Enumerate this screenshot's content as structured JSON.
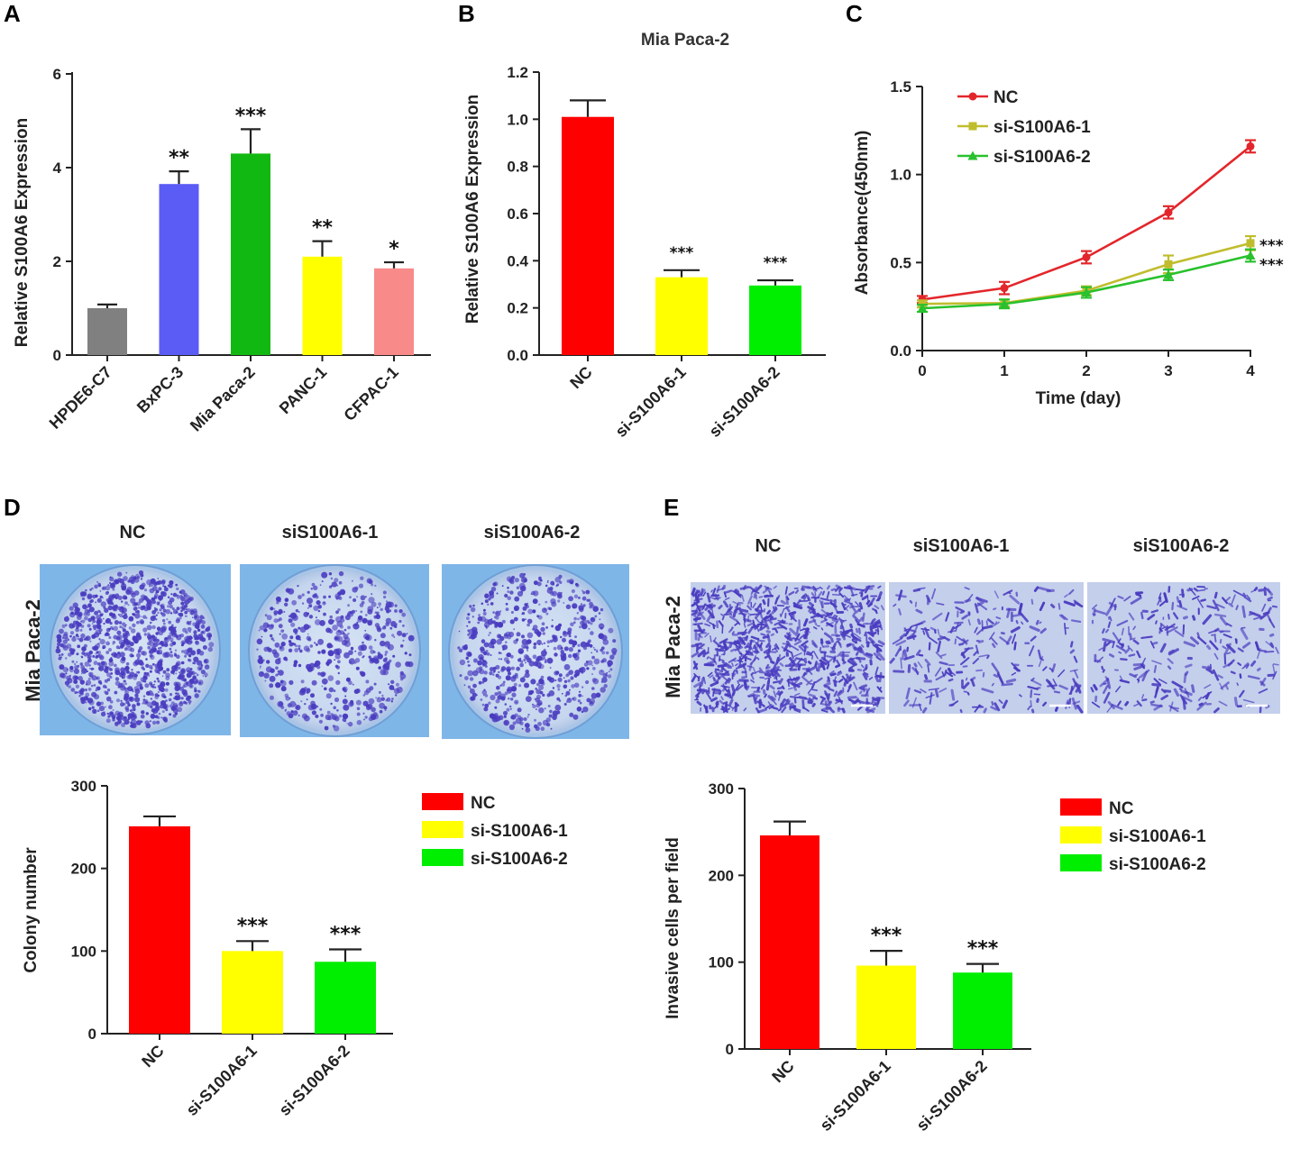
{
  "panels": {
    "A": {
      "letter": "A"
    },
    "B": {
      "letter": "B"
    },
    "C": {
      "letter": "C"
    },
    "D": {
      "letter": "D",
      "image_labels": [
        "NC",
        "siS100A6-1",
        "siS100A6-2"
      ],
      "row_label": "Mia Paca-2"
    },
    "E": {
      "letter": "E",
      "image_labels": [
        "NC",
        "siS100A6-1",
        "siS100A6-2"
      ],
      "row_label": "Mia Paca-2"
    }
  },
  "colors": {
    "grey": "#808080",
    "blue": "#5b5bf5",
    "green": "#12b812",
    "yellow": "#ffff00",
    "pink": "#f88a8a",
    "red": "#ff0000",
    "brightgreen": "#00ee00",
    "line_nc": "#e3262b",
    "line_si1": "#c0bd2d",
    "line_si2": "#29c12d",
    "stain": "#4a3cc0",
    "dish": "#7fb6e8",
    "well": "#c4cfec"
  },
  "chart_data": [
    {
      "id": "A",
      "type": "bar",
      "title": "",
      "ylabel": "Relative S100A6  Expression",
      "xlabel": "",
      "ylim": [
        0,
        6
      ],
      "yticks": [
        "0",
        "2",
        "4",
        "6"
      ],
      "categories": [
        "HPDE6-C7",
        "BxPC-3",
        "Mia Paca-2",
        "PANC-1",
        "CFPAC-1"
      ],
      "values": [
        1.0,
        3.65,
        4.3,
        2.1,
        1.85
      ],
      "errors": [
        0.08,
        0.27,
        0.52,
        0.33,
        0.13
      ],
      "significance": [
        "",
        "**",
        "***",
        "**",
        "*"
      ]
    },
    {
      "id": "B",
      "type": "bar",
      "title": "Mia Paca-2",
      "ylabel": "Relative S100A6  Expression",
      "xlabel": "",
      "ylim": [
        0,
        1.2
      ],
      "yticks": [
        "0.0",
        "0.2",
        "0.4",
        "0.6",
        "0.8",
        "1.0",
        "1.2"
      ],
      "categories": [
        "NC",
        "si-S100A6-1",
        "si-S100A6-2"
      ],
      "values": [
        1.01,
        0.33,
        0.295
      ],
      "errors": [
        0.07,
        0.03,
        0.022
      ],
      "significance": [
        "",
        "***",
        "***"
      ]
    },
    {
      "id": "C",
      "type": "line",
      "title": "",
      "ylabel": "Absorbance(450nm)",
      "xlabel": "Time (day)",
      "ylim": [
        0,
        1.5
      ],
      "yticks": [
        "0.0",
        "0.5",
        "1.0",
        "1.5"
      ],
      "x": [
        0,
        1,
        2,
        3,
        4
      ],
      "xticks": [
        "0",
        "1",
        "2",
        "3",
        "4"
      ],
      "series": [
        {
          "name": "NC",
          "values": [
            0.29,
            0.355,
            0.53,
            0.785,
            1.16
          ],
          "errors": [
            0.02,
            0.035,
            0.035,
            0.035,
            0.035
          ]
        },
        {
          "name": "si-S100A6-1",
          "values": [
            0.265,
            0.27,
            0.34,
            0.49,
            0.61
          ],
          "errors": [
            0.02,
            0.02,
            0.025,
            0.05,
            0.04
          ]
        },
        {
          "name": "si-S100A6-2",
          "values": [
            0.24,
            0.265,
            0.33,
            0.43,
            0.54
          ],
          "errors": [
            0.02,
            0.025,
            0.03,
            0.03,
            0.035
          ]
        }
      ],
      "significance": [
        "***",
        "***"
      ],
      "legend_position": "top-left"
    },
    {
      "id": "D",
      "type": "bar",
      "title": "",
      "ylabel": "Colony number",
      "xlabel": "",
      "ylim": [
        0,
        300
      ],
      "yticks": [
        "0",
        "100",
        "200",
        "300"
      ],
      "categories": [
        "NC",
        "si-S100A6-1",
        "si-S100A6-2"
      ],
      "values": [
        251,
        100,
        87
      ],
      "errors": [
        12,
        12,
        15
      ],
      "significance": [
        "",
        "***",
        "***"
      ],
      "legend": [
        "NC",
        "si-S100A6-1",
        "si-S100A6-2"
      ],
      "legend_position": "right"
    },
    {
      "id": "E",
      "type": "bar",
      "title": "",
      "ylabel": "Invasive cells per field",
      "xlabel": "",
      "ylim": [
        0,
        300
      ],
      "yticks": [
        "0",
        "100",
        "200",
        "300"
      ],
      "categories": [
        "NC",
        "si-S100A6-1",
        "si-S100A6-2"
      ],
      "values": [
        246,
        96,
        88
      ],
      "errors": [
        16,
        17,
        10
      ],
      "significance": [
        "",
        "***",
        "***"
      ],
      "legend": [
        "NC",
        "si-S100A6-1",
        "si-S100A6-2"
      ],
      "legend_position": "right"
    }
  ]
}
